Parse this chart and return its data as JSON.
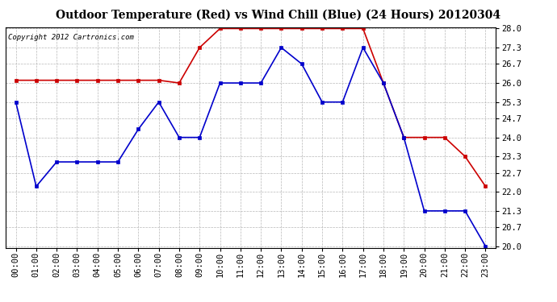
{
  "title": "Outdoor Temperature (Red) vs Wind Chill (Blue) (24 Hours) 20120304",
  "copyright": "Copyright 2012 Cartronics.com",
  "hours": [
    "00:00",
    "01:00",
    "02:00",
    "03:00",
    "04:00",
    "05:00",
    "06:00",
    "07:00",
    "08:00",
    "09:00",
    "10:00",
    "11:00",
    "12:00",
    "13:00",
    "14:00",
    "15:00",
    "16:00",
    "17:00",
    "18:00",
    "19:00",
    "20:00",
    "21:00",
    "22:00",
    "23:00"
  ],
  "red_temp": [
    26.1,
    26.1,
    26.1,
    26.1,
    26.1,
    26.1,
    26.1,
    26.1,
    26.0,
    27.3,
    28.0,
    28.0,
    28.0,
    28.0,
    28.0,
    28.0,
    28.0,
    28.0,
    26.0,
    24.0,
    24.0,
    24.0,
    23.3,
    22.2
  ],
  "blue_wc": [
    25.3,
    22.2,
    23.1,
    23.1,
    23.1,
    23.1,
    24.3,
    25.3,
    24.0,
    24.0,
    26.0,
    26.0,
    26.0,
    27.3,
    26.7,
    25.3,
    25.3,
    27.3,
    26.0,
    24.0,
    21.3,
    21.3,
    21.3,
    20.0
  ],
  "ylim_min": 20.0,
  "ylim_max": 28.0,
  "yticks": [
    20.0,
    20.7,
    21.3,
    22.0,
    22.7,
    23.3,
    24.0,
    24.7,
    25.3,
    26.0,
    26.7,
    27.3,
    28.0
  ],
  "red_color": "#cc0000",
  "blue_color": "#0000cc",
  "bg_color": "#ffffff",
  "grid_color": "#b0b0b0",
  "title_fontsize": 10,
  "tick_fontsize": 7.5,
  "copyright_fontsize": 6.5
}
